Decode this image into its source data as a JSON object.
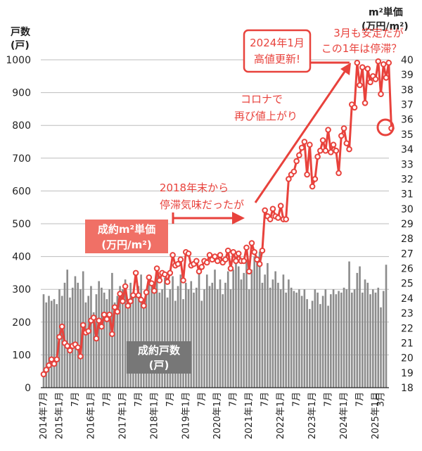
{
  "chart_data": {
    "type": "bar+line",
    "left_axis": {
      "title_lines": [
        "戸数",
        "(戸)"
      ],
      "range": [
        0,
        1000
      ],
      "ticks": [
        "0",
        "100",
        "200",
        "300",
        "400",
        "500",
        "600",
        "700",
        "800",
        "900",
        "1000"
      ]
    },
    "right_axis": {
      "title_lines": [
        "m²単価",
        "(万円/m²)"
      ],
      "range": [
        18,
        40
      ],
      "ticks": [
        "18",
        "19",
        "20",
        "21",
        "22",
        "23",
        "24",
        "25",
        "26",
        "27",
        "28",
        "29",
        "30",
        "31",
        "32",
        "33",
        "34",
        "35",
        "36",
        "37",
        "38",
        "39",
        "40"
      ]
    },
    "x_start": "2014年7月",
    "x_end": "2025年3月",
    "x_labels": [
      {
        "text": "2014年7月",
        "month_index": 0
      },
      {
        "text": "2015年1月",
        "month_index": 6
      },
      {
        "text": "7月",
        "month_index": 12
      },
      {
        "text": "2016年1月",
        "month_index": 18
      },
      {
        "text": "7月",
        "month_index": 24
      },
      {
        "text": "2017年1月",
        "month_index": 30
      },
      {
        "text": "7月",
        "month_index": 36
      },
      {
        "text": "2018年1月",
        "month_index": 42
      },
      {
        "text": "7月",
        "month_index": 48
      },
      {
        "text": "2019年1月",
        "month_index": 54
      },
      {
        "text": "7月",
        "month_index": 60
      },
      {
        "text": "2020年1月",
        "month_index": 66
      },
      {
        "text": "7月",
        "month_index": 72
      },
      {
        "text": "2021年1月",
        "month_index": 78
      },
      {
        "text": "7月",
        "month_index": 84
      },
      {
        "text": "2022年1月",
        "month_index": 90
      },
      {
        "text": "7月",
        "month_index": 96
      },
      {
        "text": "2023年1月",
        "month_index": 102
      },
      {
        "text": "7月",
        "month_index": 108
      },
      {
        "text": "2024年1月",
        "month_index": 114
      },
      {
        "text": "7月",
        "month_index": 120
      },
      {
        "text": "2025年1月",
        "month_index": 126
      },
      {
        "text": "3月",
        "month_index": 128
      }
    ],
    "series": [
      {
        "name": "成約戸数(戸)",
        "type": "bar",
        "axis": "left",
        "color": "#8c8c8c",
        "values": [
          285,
          260,
          280,
          265,
          270,
          255,
          300,
          280,
          320,
          360,
          275,
          305,
          340,
          320,
          300,
          355,
          260,
          280,
          310,
          230,
          285,
          325,
          305,
          290,
          270,
          300,
          350,
          260,
          280,
          310,
          300,
          330,
          270,
          320,
          290,
          285,
          310,
          345,
          250,
          295,
          330,
          320,
          310,
          360,
          290,
          300,
          335,
          275,
          300,
          340,
          265,
          310,
          345,
          270,
          320,
          300,
          325,
          290,
          305,
          350,
          265,
          300,
          345,
          310,
          320,
          360,
          300,
          330,
          285,
          320,
          355,
          300,
          360,
          400,
          370,
          330,
          350,
          390,
          300,
          360,
          400,
          395,
          415,
          320,
          345,
          380,
          305,
          330,
          355,
          320,
          300,
          345,
          290,
          330,
          305,
          295,
          290,
          300,
          280,
          300,
          270,
          240,
          265,
          300,
          290,
          255,
          280,
          300,
          250,
          285,
          300,
          285,
          295,
          290,
          305,
          300,
          385,
          290,
          300,
          350,
          370,
          290,
          330,
          320,
          285,
          300,
          290,
          305,
          245,
          295,
          375
        ]
      },
      {
        "name": "成約m²単価(万円/m²)",
        "type": "line",
        "axis": "right",
        "color": "#e8423c",
        "values": [
          18.9,
          19.2,
          19.5,
          19.9,
          19.6,
          19.9,
          21.4,
          22.1,
          21.0,
          20.8,
          20.5,
          20.8,
          20.9,
          20.7,
          20.1,
          22.2,
          21.7,
          21.8,
          22.5,
          22.7,
          21.3,
          22.5,
          22.1,
          22.9,
          22.6,
          22.9,
          21.6,
          23.4,
          23.1,
          24.3,
          23.8,
          24.8,
          23.5,
          23.8,
          24.2,
          25.7,
          24.2,
          23.9,
          23.5,
          24.4,
          25.4,
          25.0,
          24.5,
          26.0,
          25.2,
          25.7,
          25.6,
          25.1,
          25.7,
          26.9,
          26.2,
          26.3,
          26.6,
          25.2,
          27.1,
          27.0,
          26.2,
          26.3,
          26.5,
          25.8,
          26.1,
          26.5,
          26.4,
          26.9,
          26.6,
          26.8,
          26.5,
          26.9,
          26.4,
          26.6,
          27.2,
          26.0,
          27.1,
          26.5,
          27.0,
          26.5,
          26.5,
          27.4,
          25.8,
          27.7,
          27.1,
          26.6,
          26.3,
          27.2,
          29.9,
          29.5,
          29.3,
          30.0,
          29.5,
          29.4,
          30.2,
          29.3,
          29.3,
          32.0,
          32.3,
          32.5,
          33.2,
          33.6,
          34.1,
          34.5,
          32.3,
          34.3,
          31.5,
          32.0,
          33.5,
          33.9,
          34.6,
          33.9,
          35.3,
          33.8,
          34.3,
          33.9,
          32.4,
          34.9,
          35.4,
          34.4,
          34.0,
          37.0,
          36.8,
          39.8,
          38.3,
          39.5,
          37.1,
          39.4,
          38.5,
          38.9,
          38.7,
          39.9,
          37.7,
          39.7,
          38.8,
          39.8,
          35.4
        ]
      }
    ]
  },
  "annotations": {
    "box_2024": [
      "2024年1月",
      "高値更新!"
    ],
    "march_note": [
      "3月も安定だが",
      "この1年は停滞？"
    ],
    "corona": [
      "コロナで",
      "再び値上がり"
    ],
    "stagnation": [
      "2018年末から",
      "停滞気味だったが"
    ],
    "unit_price_label": [
      "成約m²単価",
      "(万円/m²)"
    ],
    "units_label": [
      "成約戸数",
      "(戸)"
    ]
  }
}
